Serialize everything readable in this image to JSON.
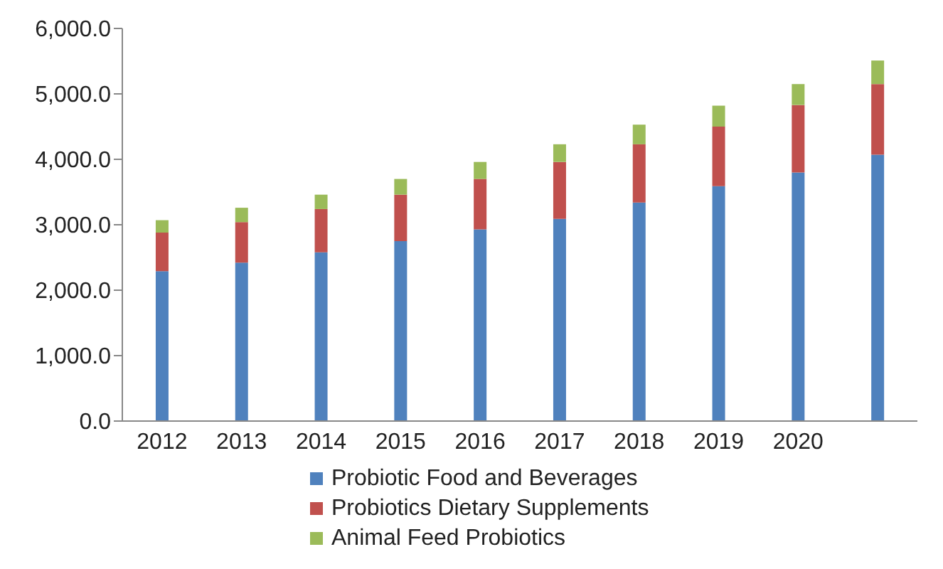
{
  "chart_data": {
    "type": "bar",
    "stacked": true,
    "categories": [
      "2012",
      "2013",
      "2014",
      "2015",
      "2016",
      "2017",
      "2018",
      "2019",
      "2020",
      null
    ],
    "series": [
      {
        "name": "Probiotic Food and Beverages",
        "color": "#4f81bd",
        "values": [
          2290,
          2420,
          2580,
          2750,
          2930,
          3090,
          3340,
          3590,
          3800,
          4070
        ]
      },
      {
        "name": "Probiotics Dietary Supplements",
        "color": "#c0504d",
        "values": [
          590,
          620,
          660,
          710,
          770,
          870,
          890,
          910,
          1030,
          1080
        ]
      },
      {
        "name": "Animal Feed Probiotics",
        "color": "#9bbb59",
        "values": [
          190,
          220,
          220,
          240,
          260,
          270,
          300,
          320,
          320,
          360
        ]
      }
    ],
    "ylim": [
      0,
      6000
    ],
    "yticks": [
      {
        "value": 0,
        "label": "0.0"
      },
      {
        "value": 1000,
        "label": "1,000.0"
      },
      {
        "value": 2000,
        "label": "2,000.0"
      },
      {
        "value": 3000,
        "label": "3,000.0"
      },
      {
        "value": 4000,
        "label": "4,000.0"
      },
      {
        "value": 5000,
        "label": "5,000.0"
      },
      {
        "value": 6000,
        "label": "6,000.0"
      }
    ],
    "grid": false,
    "legend": "bottom"
  }
}
